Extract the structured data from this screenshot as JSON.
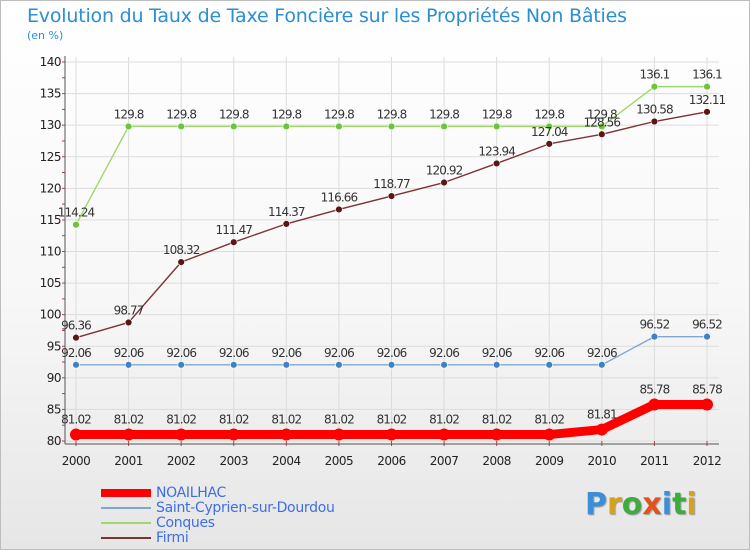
{
  "title": "Evolution du Taux de Taxe Foncière sur les Propriétés Non Bâties",
  "unit_label": "(en %)",
  "logo": {
    "text": "Proxiti",
    "letters": [
      {
        "ch": "P",
        "color": "#3b8fd9"
      },
      {
        "ch": "r",
        "color": "#d4a21e"
      },
      {
        "ch": "o",
        "color": "#3faa3f"
      },
      {
        "ch": "x",
        "color": "#e0531d"
      },
      {
        "ch": "i",
        "color": "#3b8fd9"
      },
      {
        "ch": "t",
        "color": "#3faa3f"
      },
      {
        "ch": "i",
        "color": "#d4a21e"
      }
    ]
  },
  "chart_data": {
    "type": "line",
    "title": "Evolution du Taux de Taxe Foncière sur les Propriétés Non Bâties",
    "ylabel": "(en %)",
    "xlabel": "",
    "ylim": [
      80,
      140
    ],
    "yticks": [
      80,
      85,
      90,
      95,
      100,
      105,
      110,
      115,
      120,
      125,
      130,
      135,
      140
    ],
    "categories": [
      "2000",
      "2001",
      "2002",
      "2003",
      "2004",
      "2005",
      "2006",
      "2007",
      "2008",
      "2009",
      "2010",
      "2011",
      "2012"
    ],
    "grid": true,
    "series": [
      {
        "name": "NOAILHAC",
        "color": "#ff0000",
        "marker": "#ff0000",
        "width": "thick",
        "values": [
          81.02,
          81.02,
          81.02,
          81.02,
          81.02,
          81.02,
          81.02,
          81.02,
          81.02,
          81.02,
          81.81,
          85.78,
          85.78
        ],
        "labels": [
          "81.02",
          "81.02",
          "81.02",
          "81.02",
          "81.02",
          "81.02",
          "81.02",
          "81.02",
          "81.02",
          "81.02",
          "81.81",
          "85.78",
          "85.78"
        ]
      },
      {
        "name": "Saint-Cyprien-sur-Dourdou",
        "color": "#7fa8d0",
        "marker": "#3f82c4",
        "width": "thin",
        "values": [
          92.06,
          92.06,
          92.06,
          92.06,
          92.06,
          92.06,
          92.06,
          92.06,
          92.06,
          92.06,
          92.06,
          96.52,
          96.52
        ],
        "labels": [
          "92.06",
          "92.06",
          "92.06",
          "92.06",
          "92.06",
          "92.06",
          "92.06",
          "92.06",
          "92.06",
          "92.06",
          "92.06",
          "96.52",
          "96.52"
        ]
      },
      {
        "name": "Conques",
        "color": "#9fd86a",
        "marker": "#6cc33c",
        "width": "thin",
        "values": [
          114.24,
          129.8,
          129.8,
          129.8,
          129.8,
          129.8,
          129.8,
          129.8,
          129.8,
          129.8,
          129.8,
          136.1,
          136.1
        ],
        "labels": [
          "114.24",
          "129.8",
          "129.8",
          "129.8",
          "129.8",
          "129.8",
          "129.8",
          "129.8",
          "129.8",
          "129.8",
          "129.8",
          "136.1",
          "136.1"
        ]
      },
      {
        "name": "Firmi",
        "color": "#7a3434",
        "marker": "#5a1515",
        "width": "thin",
        "values": [
          96.36,
          98.77,
          108.32,
          111.47,
          114.37,
          116.66,
          118.77,
          120.92,
          123.94,
          127.04,
          128.56,
          130.58,
          132.11
        ],
        "labels": [
          "96.36",
          "98.77",
          "108.32",
          "111.47",
          "114.37",
          "116.66",
          "118.77",
          "120.92",
          "123.94",
          "127.04",
          "128.56",
          "130.58",
          "132.11"
        ]
      }
    ]
  }
}
